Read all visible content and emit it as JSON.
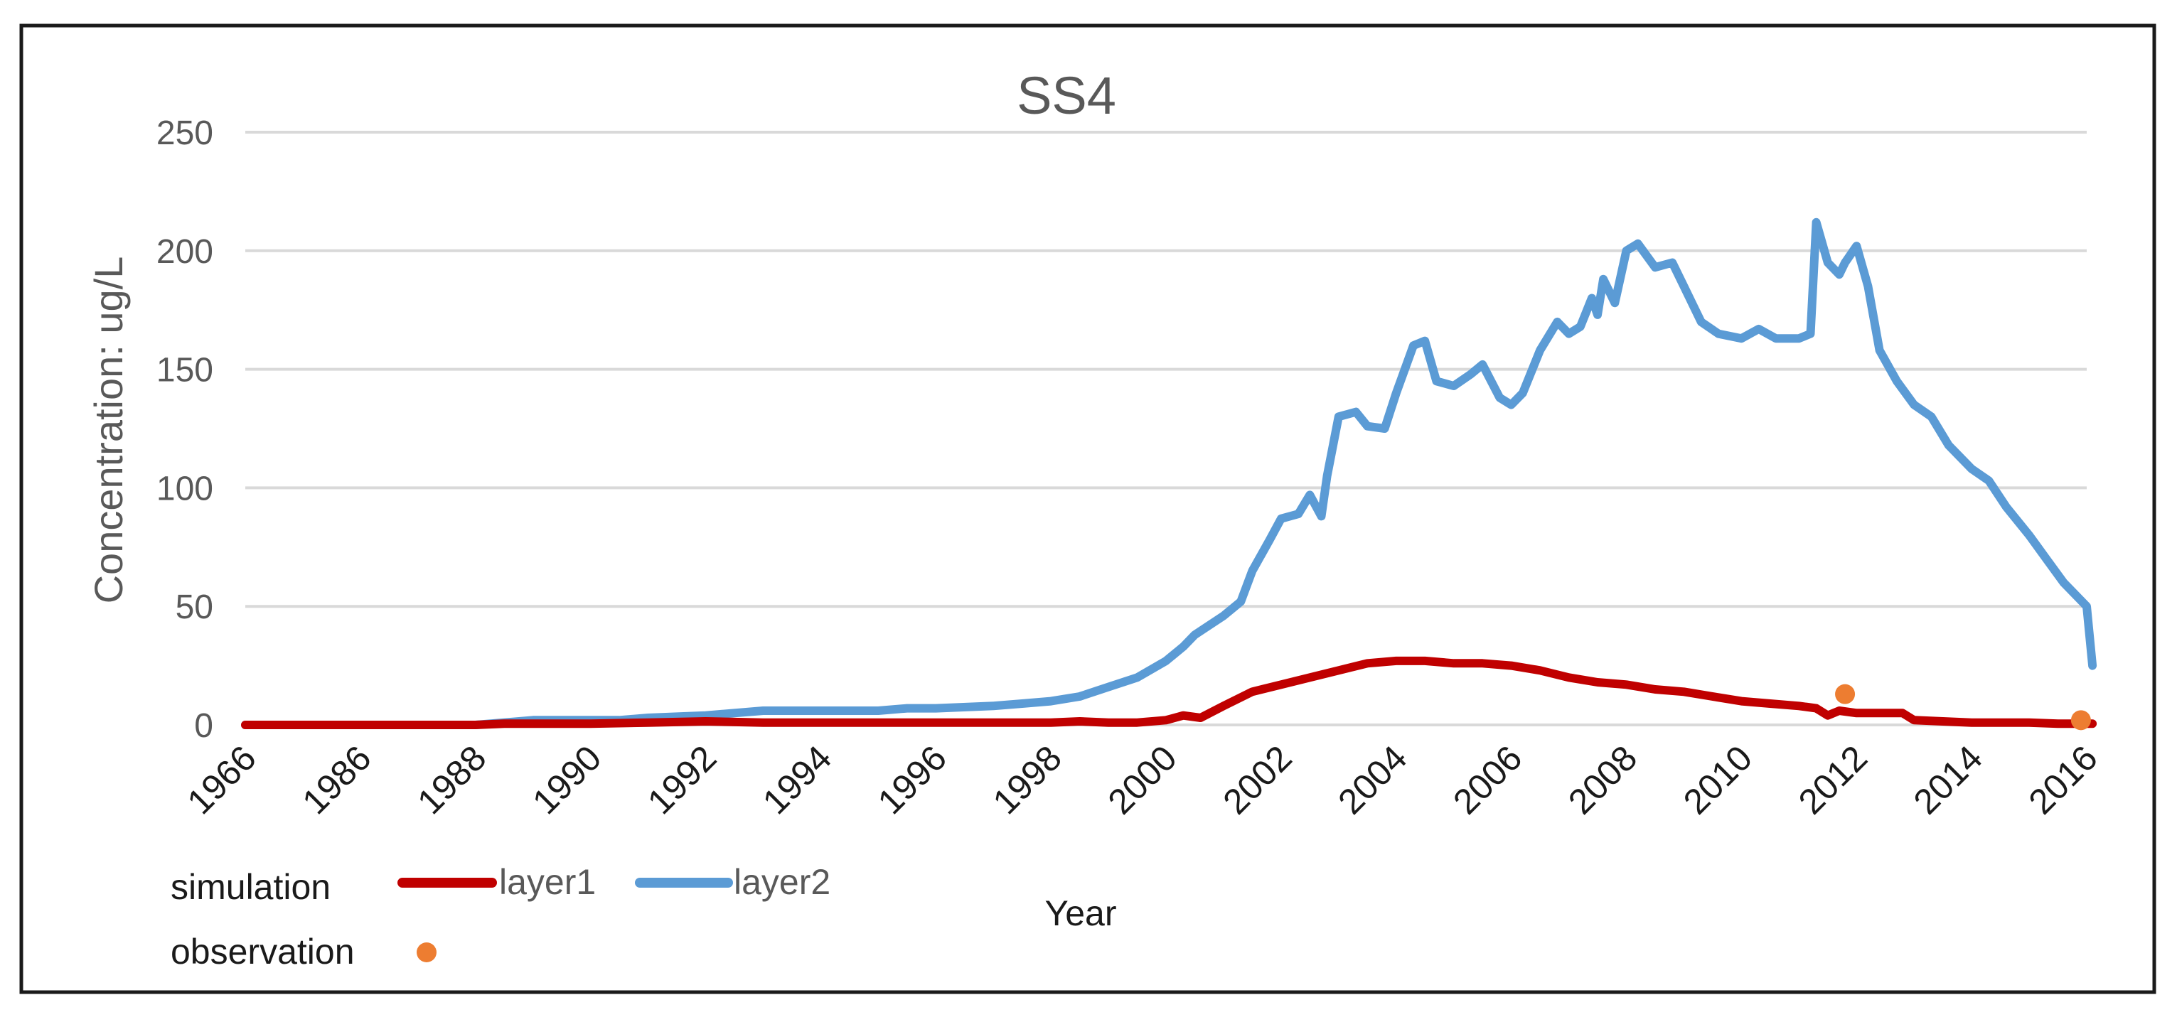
{
  "chart_data": {
    "type": "line",
    "title": "SS4",
    "xlabel": "Year",
    "ylabel": "Concentration: ug/L",
    "ylim": [
      0,
      250
    ],
    "yticks": [
      0,
      50,
      100,
      150,
      200,
      250
    ],
    "grid": true,
    "x_tick_labels": [
      "1966",
      "1986",
      "1988",
      "1990",
      "1992",
      "1994",
      "1996",
      "1998",
      "2000",
      "2002",
      "2004",
      "2006",
      "2008",
      "2010",
      "2012",
      "2014",
      "2016"
    ],
    "xlim": [
      1966,
      2016.1
    ],
    "legend": {
      "placement": "bottom-left",
      "simulation_label": "simulation",
      "observation_label": "observation"
    },
    "series": [
      {
        "name": "layer1",
        "kind": "simulation",
        "color": "#C00000",
        "x": [
          1966,
          1986,
          1987,
          1988,
          1988.5,
          1989,
          1990,
          1991,
          1992,
          1993,
          1994,
          1995,
          1996,
          1997,
          1998,
          1998.5,
          1999,
          1999.5,
          2000,
          2000.3,
          2000.6,
          2001,
          2001.5,
          2002,
          2002.5,
          2003,
          2003.5,
          2004,
          2004.5,
          2005,
          2005.5,
          2006,
          2006.5,
          2007,
          2007.5,
          2008,
          2008.5,
          2009,
          2009.5,
          2010,
          2010.5,
          2011,
          2011.3,
          2011.5,
          2011.7,
          2012,
          2012.5,
          2012.8,
          2013,
          2013.5,
          2014,
          2014.5,
          2015,
          2015.5,
          2016,
          2016.1
        ],
        "y": [
          0,
          0,
          0,
          0,
          0.5,
          0.5,
          0.5,
          1,
          1.5,
          1,
          1,
          1,
          1,
          1,
          1,
          1.5,
          1,
          1,
          2,
          4,
          3,
          8,
          14,
          17,
          20,
          23,
          26,
          27,
          27,
          26,
          26,
          25,
          23,
          20,
          18,
          17,
          15,
          14,
          12,
          10,
          9,
          8,
          7,
          4,
          6,
          5,
          5,
          5,
          2,
          1.5,
          1,
          1,
          1,
          0.5,
          0.5,
          0.5
        ]
      },
      {
        "name": "layer2",
        "kind": "simulation",
        "color": "#5B9BD5",
        "x": [
          1966,
          1986,
          1987,
          1988,
          1988.5,
          1989,
          1990,
          1990.5,
          1991,
          1992,
          1992.5,
          1993,
          1994,
          1995,
          1995.5,
          1996,
          1997,
          1997.5,
          1998,
          1998.5,
          1999,
          1999.5,
          2000,
          2000.3,
          2000.5,
          2001,
          2001.3,
          2001.5,
          2001.8,
          2002,
          2002.3,
          2002.5,
          2002.7,
          2002.8,
          2003,
          2003.3,
          2003.5,
          2003.8,
          2004,
          2004.3,
          2004.5,
          2004.7,
          2005,
          2005.3,
          2005.5,
          2005.8,
          2006,
          2006.2,
          2006.5,
          2006.8,
          2007,
          2007.2,
          2007.4,
          2007.5,
          2007.6,
          2007.8,
          2008,
          2008.2,
          2008.5,
          2008.8,
          2009,
          2009.3,
          2009.6,
          2010,
          2010.3,
          2010.6,
          2011,
          2011.2,
          2011.3,
          2011.5,
          2011.7,
          2011.8,
          2012,
          2012.2,
          2012.4,
          2012.7,
          2013,
          2013.3,
          2013.6,
          2014,
          2014.3,
          2014.6,
          2015,
          2015.3,
          2015.6,
          2016,
          2016.1
        ],
        "y": [
          0,
          0,
          0,
          0,
          1,
          2,
          2,
          2,
          3,
          4,
          5,
          6,
          6,
          6,
          7,
          7,
          8,
          9,
          10,
          12,
          16,
          20,
          27,
          33,
          38,
          46,
          52,
          65,
          78,
          87,
          89,
          97,
          88,
          105,
          130,
          132,
          126,
          125,
          140,
          160,
          162,
          145,
          143,
          148,
          152,
          138,
          135,
          140,
          158,
          170,
          165,
          168,
          180,
          173,
          188,
          178,
          200,
          203,
          193,
          195,
          185,
          170,
          165,
          163,
          167,
          163,
          163,
          165,
          212,
          195,
          190,
          195,
          202,
          185,
          158,
          145,
          135,
          130,
          118,
          108,
          103,
          92,
          80,
          70,
          60,
          50,
          25
        ]
      },
      {
        "name": "observation",
        "kind": "observation",
        "color": "#ED7D31",
        "x": [
          2011.8,
          2015.9
        ],
        "y": [
          13,
          2
        ]
      }
    ]
  }
}
